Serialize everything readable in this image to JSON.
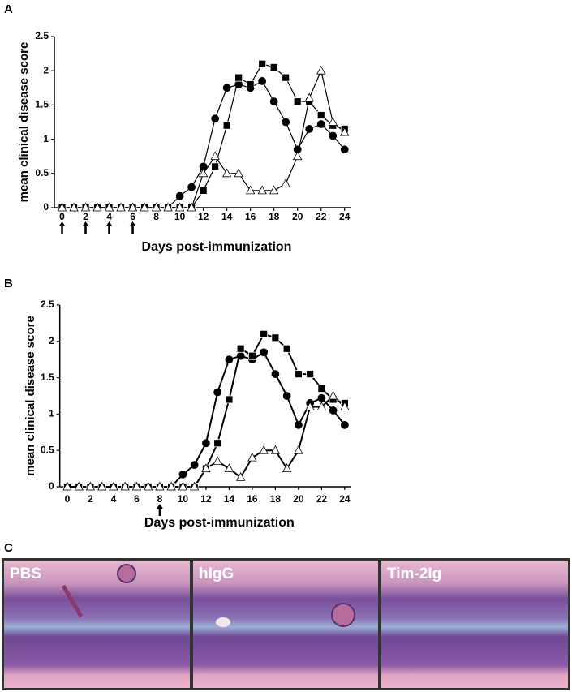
{
  "panel_labels": [
    "A",
    "B",
    "C"
  ],
  "images": [
    "PBS",
    "hIgG",
    "Tim-2Ig"
  ],
  "chart_data": [
    {
      "type": "line",
      "x_label": "Days post-immunization",
      "y_label": "mean clinical disease score",
      "x": [
        0,
        1,
        2,
        3,
        4,
        5,
        6,
        7,
        8,
        9,
        10,
        11,
        12,
        13,
        14,
        15,
        16,
        17,
        18,
        19,
        20,
        21,
        22,
        23,
        24
      ],
      "xlim": [
        -1,
        24.5
      ],
      "xticks": [
        0,
        2,
        4,
        6,
        8,
        10,
        12,
        14,
        16,
        18,
        20,
        22,
        24
      ],
      "ylim": [
        0,
        2.5
      ],
      "yticks": [
        0,
        0.5,
        1,
        1.5,
        2,
        2.5
      ],
      "arrows": [
        0,
        2,
        4,
        6
      ],
      "series": [
        {
          "marker": "circle",
          "color": "#000000",
          "values": [
            0,
            0,
            0,
            0,
            0,
            0,
            0,
            0,
            0,
            0,
            0.17,
            0.3,
            0.6,
            1.3,
            1.75,
            1.8,
            1.75,
            1.85,
            1.55,
            1.25,
            0.85,
            1.15,
            1.22,
            1.05,
            0.85
          ]
        },
        {
          "marker": "square",
          "color": "#000000",
          "values": [
            0,
            0,
            0,
            0,
            0,
            0,
            0,
            0,
            0,
            0,
            0,
            0,
            0.25,
            0.6,
            1.2,
            1.9,
            1.8,
            2.1,
            2.05,
            1.9,
            1.55,
            1.55,
            1.35,
            1.2,
            1.15
          ]
        },
        {
          "marker": "triangle",
          "color": "#ffffff",
          "values": [
            0,
            0,
            0,
            0,
            0,
            0,
            0,
            0,
            0,
            0,
            0,
            0,
            0.5,
            0.75,
            0.5,
            0.5,
            0.25,
            0.25,
            0.25,
            0.35,
            0.75,
            1.6,
            2.0,
            1.25,
            1.1
          ]
        }
      ]
    },
    {
      "type": "line",
      "x_label": "Days post-immunization",
      "y_label": "mean clinical disease score",
      "x": [
        0,
        1,
        2,
        3,
        4,
        5,
        6,
        7,
        8,
        9,
        10,
        11,
        12,
        13,
        14,
        15,
        16,
        17,
        18,
        19,
        20,
        21,
        22,
        23,
        24
      ],
      "xlim": [
        -1,
        24.5
      ],
      "xticks": [
        0,
        2,
        4,
        6,
        8,
        10,
        12,
        14,
        16,
        18,
        20,
        22,
        24
      ],
      "ylim": [
        0,
        2.5
      ],
      "yticks": [
        0,
        0.5,
        1,
        1.5,
        2,
        2.5
      ],
      "arrows": [
        8
      ],
      "series": [
        {
          "marker": "circle",
          "color": "#000000",
          "values": [
            0,
            0,
            0,
            0,
            0,
            0,
            0,
            0,
            0,
            0,
            0.17,
            0.3,
            0.6,
            1.3,
            1.75,
            1.8,
            1.75,
            1.85,
            1.55,
            1.25,
            0.85,
            1.15,
            1.22,
            1.05,
            0.85
          ]
        },
        {
          "marker": "square",
          "color": "#000000",
          "values": [
            0,
            0,
            0,
            0,
            0,
            0,
            0,
            0,
            0,
            0,
            0,
            0,
            0.25,
            0.6,
            1.2,
            1.9,
            1.8,
            2.1,
            2.05,
            1.9,
            1.55,
            1.55,
            1.35,
            1.2,
            1.15
          ]
        },
        {
          "marker": "triangle",
          "color": "#ffffff",
          "values": [
            0,
            0,
            0,
            0,
            0,
            0,
            0,
            0,
            0,
            0,
            0,
            0,
            0.25,
            0.35,
            0.25,
            0.13,
            0.4,
            0.5,
            0.5,
            0.25,
            0.5,
            1.1,
            1.1,
            1.25,
            1.1
          ]
        }
      ]
    }
  ]
}
